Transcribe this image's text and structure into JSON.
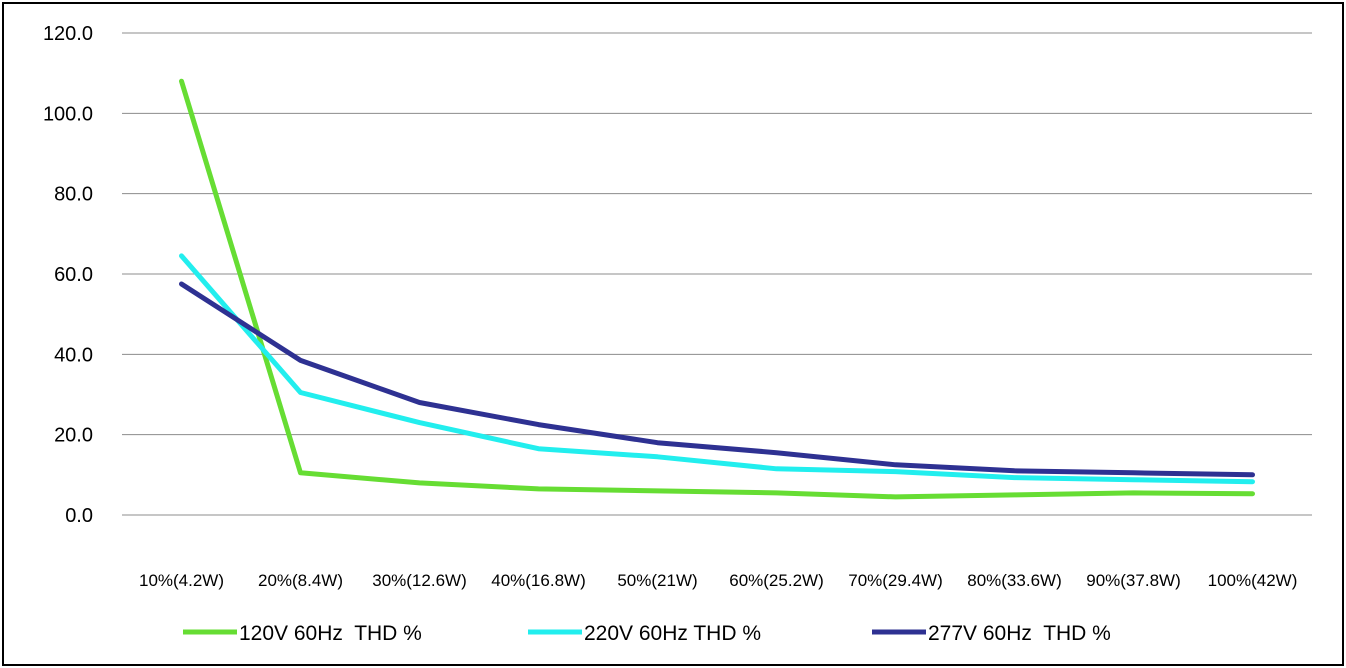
{
  "chart_data": {
    "type": "line",
    "title": "",
    "xlabel": "",
    "ylabel": "",
    "categories": [
      "10%(4.2W)",
      "20%(8.4W)",
      "30%(12.6W)",
      "40%(16.8W)",
      "50%(21W)",
      "60%(25.2W)",
      "70%(29.4W)",
      "80%(33.6W)",
      "90%(37.8W)",
      "100%(42W)"
    ],
    "yticks": [
      "0.0",
      "20.0",
      "40.0",
      "60.0",
      "80.0",
      "100.0",
      "120.0"
    ],
    "ylim": [
      0,
      120
    ],
    "grid": true,
    "legend_position": "bottom",
    "series": [
      {
        "name": "120V 60Hz  THD %",
        "color": "#66dd33",
        "values": [
          108.0,
          10.5,
          8.0,
          6.5,
          6.0,
          5.5,
          4.5,
          5.0,
          5.5,
          5.3
        ]
      },
      {
        "name": "220V 60Hz THD %",
        "color": "#22eeee",
        "values": [
          64.5,
          30.5,
          23.0,
          16.5,
          14.5,
          11.5,
          10.8,
          9.3,
          8.8,
          8.3
        ]
      },
      {
        "name": "277V 60Hz  THD %",
        "color": "#2e3192",
        "values": [
          57.5,
          38.5,
          28.0,
          22.5,
          18.0,
          15.5,
          12.5,
          11.0,
          10.5,
          10.0
        ]
      }
    ]
  }
}
